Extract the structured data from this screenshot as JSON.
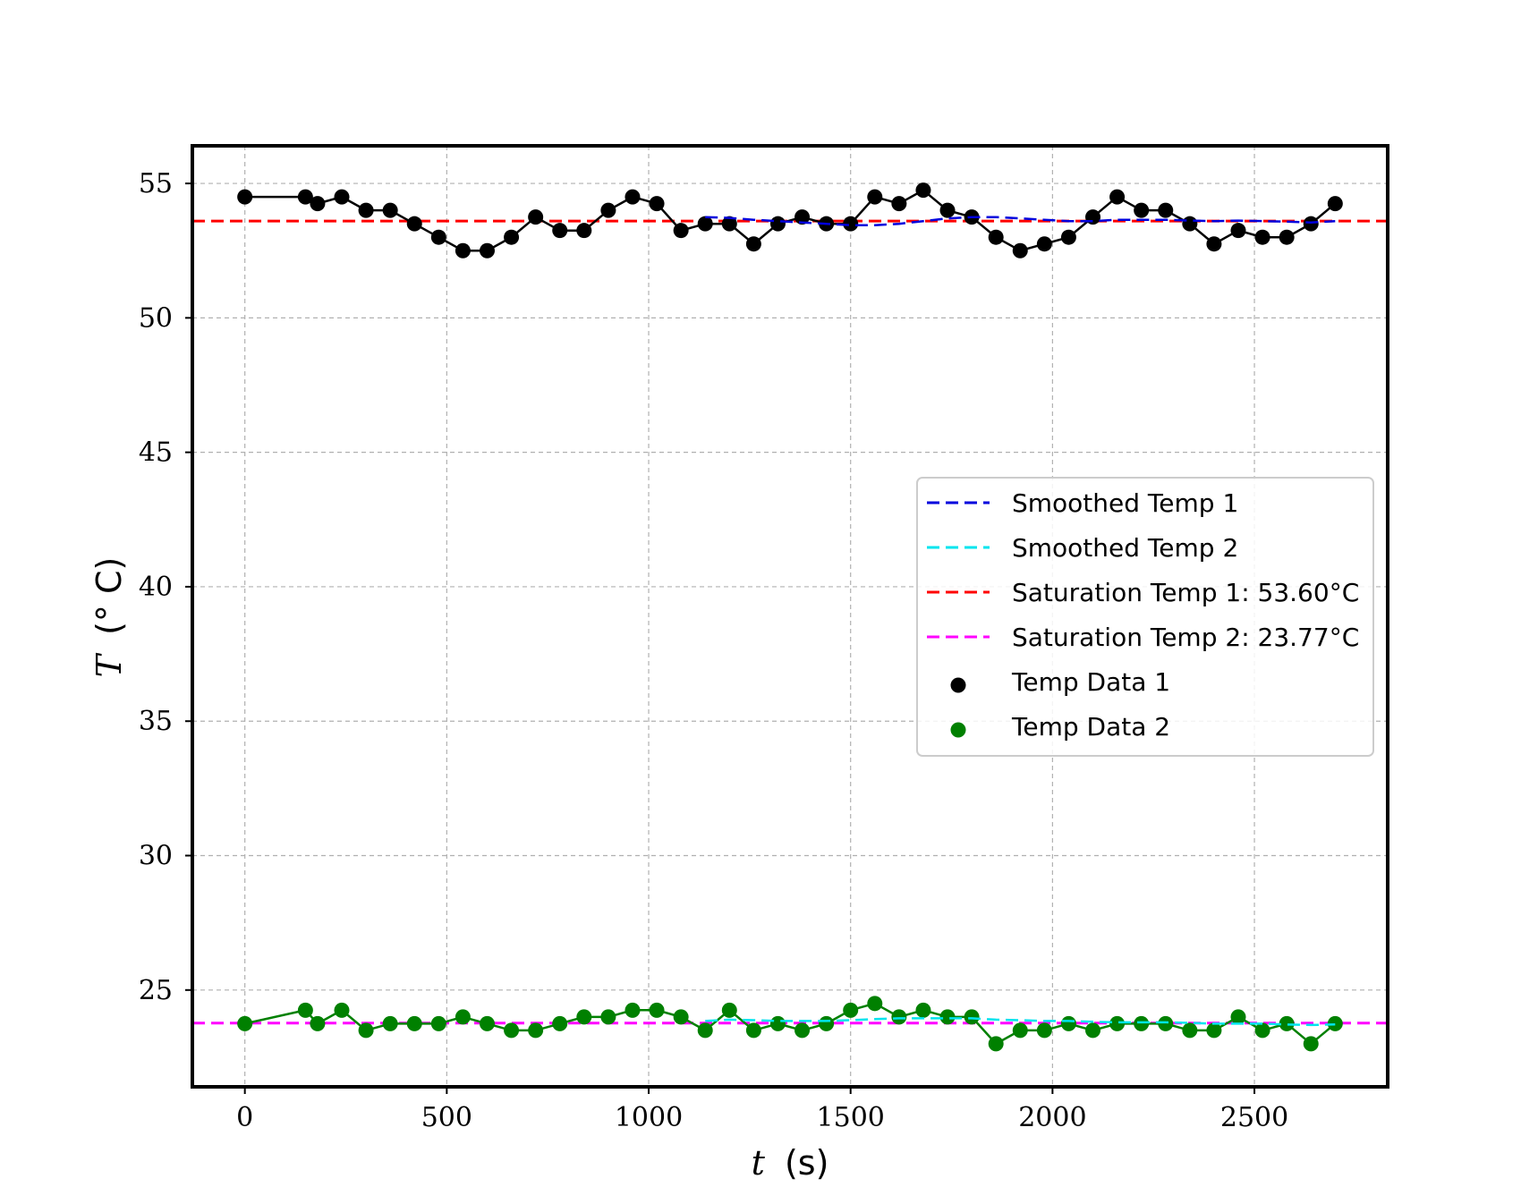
{
  "chart_data": {
    "type": "line",
    "title": "",
    "xlabel_var": "t",
    "xlabel_unit": "(s)",
    "ylabel_var": "T",
    "ylabel_unit": "(° C)",
    "xlim": [
      -130,
      2830
    ],
    "ylim": [
      21.4,
      56.4
    ],
    "xticks": [
      0,
      500,
      1000,
      1500,
      2000,
      2500
    ],
    "yticks": [
      25,
      30,
      35,
      40,
      45,
      50,
      55
    ],
    "grid": true,
    "legend_position": "center-right",
    "x": [
      0,
      150,
      180,
      240,
      300,
      360,
      420,
      480,
      540,
      600,
      660,
      720,
      780,
      840,
      900,
      960,
      1020,
      1080,
      1140,
      1200,
      1260,
      1320,
      1380,
      1440,
      1500,
      1560,
      1620,
      1680,
      1740,
      1800,
      1860,
      1920,
      1980,
      2040,
      2100,
      2160,
      2220,
      2280,
      2340,
      2400,
      2460,
      2520,
      2580,
      2640,
      2700
    ],
    "series": [
      {
        "name": "Temp Data 1",
        "style": "marker-line",
        "color": "#000000",
        "values": [
          54.5,
          54.5,
          54.25,
          54.5,
          54.0,
          54.0,
          53.5,
          53.0,
          52.5,
          52.5,
          53.0,
          53.75,
          53.25,
          53.25,
          54.0,
          54.5,
          54.25,
          53.25,
          53.5,
          53.5,
          52.75,
          53.5,
          53.75,
          53.5,
          53.5,
          54.5,
          54.25,
          54.75,
          54.0,
          53.75,
          53.0,
          52.5,
          52.75,
          53.0,
          53.75,
          54.5,
          54.0,
          54.0,
          53.5,
          52.75,
          53.25,
          53.0,
          53.0,
          53.5,
          54.25
        ]
      },
      {
        "name": "Temp Data 2",
        "style": "marker-line",
        "color": "#008000",
        "values": [
          23.75,
          24.25,
          23.75,
          24.25,
          23.5,
          23.75,
          23.75,
          23.75,
          24.0,
          23.75,
          23.5,
          23.5,
          23.75,
          24.0,
          24.0,
          24.25,
          24.25,
          24.0,
          23.5,
          24.25,
          23.5,
          23.75,
          23.5,
          23.75,
          24.25,
          24.5,
          24.0,
          24.25,
          24.0,
          24.0,
          23.0,
          23.5,
          23.5,
          23.75,
          23.5,
          23.75,
          23.75,
          23.75,
          23.5,
          23.5,
          24.0,
          23.5,
          23.75,
          23.0,
          23.75
        ]
      },
      {
        "name": "Smoothed Temp 1",
        "style": "dashed",
        "color": "#0000dd",
        "x": [
          1140,
          1200,
          1260,
          1320,
          1380,
          1440,
          1500,
          1560,
          1620,
          1680,
          1740,
          1800,
          1860,
          1920,
          1980,
          2040,
          2100,
          2160,
          2220,
          2280,
          2340,
          2400,
          2460,
          2520,
          2580,
          2640,
          2700
        ],
        "values": [
          53.75,
          53.72,
          53.65,
          53.6,
          53.55,
          53.5,
          53.45,
          53.45,
          53.5,
          53.6,
          53.7,
          53.75,
          53.75,
          53.7,
          53.65,
          53.6,
          53.6,
          53.65,
          53.65,
          53.65,
          53.62,
          53.6,
          53.62,
          53.6,
          53.58,
          53.55,
          53.6
        ]
      },
      {
        "name": "Smoothed Temp 2",
        "style": "dashed",
        "color": "#00e5ee",
        "x": [
          1140,
          1200,
          1260,
          1320,
          1380,
          1440,
          1500,
          1560,
          1620,
          1680,
          1740,
          1800,
          1860,
          1920,
          1980,
          2040,
          2100,
          2160,
          2220,
          2280,
          2340,
          2400,
          2460,
          2520,
          2580,
          2640,
          2700
        ],
        "values": [
          23.85,
          23.9,
          23.88,
          23.85,
          23.85,
          23.85,
          23.88,
          23.92,
          23.95,
          23.95,
          23.95,
          23.95,
          23.9,
          23.88,
          23.85,
          23.85,
          23.82,
          23.8,
          23.8,
          23.8,
          23.78,
          23.75,
          23.75,
          23.75,
          23.72,
          23.7,
          23.72
        ]
      },
      {
        "name": "Saturation Temp 1: 53.60°C",
        "style": "hline-dashed",
        "color": "#ff0000",
        "value": 53.6
      },
      {
        "name": "Saturation Temp 2: 23.77°C",
        "style": "hline-dashed",
        "color": "#ff00ff",
        "value": 23.77
      }
    ],
    "legend": [
      {
        "label": "Smoothed Temp 1",
        "kind": "line",
        "color": "#0000dd"
      },
      {
        "label": "Smoothed Temp 2",
        "kind": "line",
        "color": "#00e5ee"
      },
      {
        "label": "Saturation Temp 1: 53.60°C",
        "kind": "line",
        "color": "#ff0000"
      },
      {
        "label": "Saturation Temp 2: 23.77°C",
        "kind": "line",
        "color": "#ff00ff"
      },
      {
        "label": "Temp Data 1",
        "kind": "marker",
        "color": "#000000"
      },
      {
        "label": "Temp Data 2",
        "kind": "marker",
        "color": "#008000"
      }
    ]
  }
}
